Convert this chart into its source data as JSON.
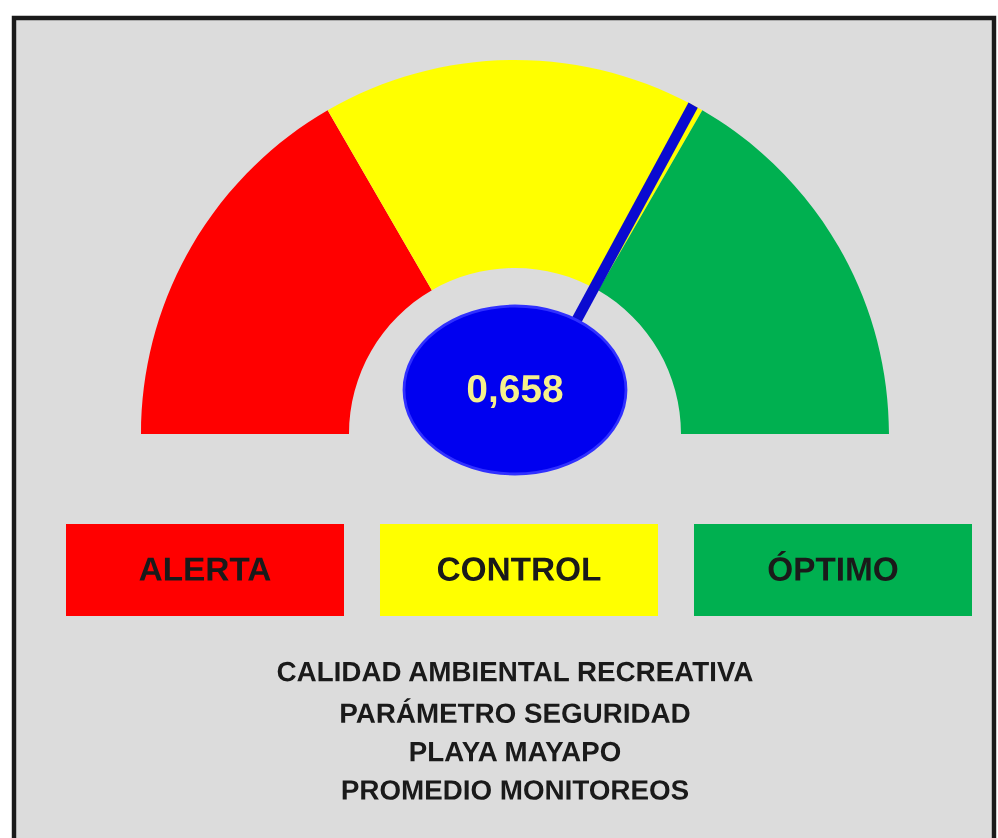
{
  "chart_data": {
    "type": "donut",
    "title": "CALIDAD AMBIENTAL RECREATIVA",
    "subtitle": "PARÁMETRO SEGURIDAD\nPLAYA MAYAPO\nPROMEDIO MONITOREOS",
    "categories": [
      "ALERTA",
      "CONTROL",
      "ÓPTIMO"
    ],
    "values": [
      33.3,
      33.4,
      33.3
    ],
    "colors": [
      "#ff0000",
      "#ffff00",
      "#00b050"
    ],
    "needle": "CONTROL",
    "annotations": [
      "0,658"
    ],
    "legend": "bottom"
  }
}
